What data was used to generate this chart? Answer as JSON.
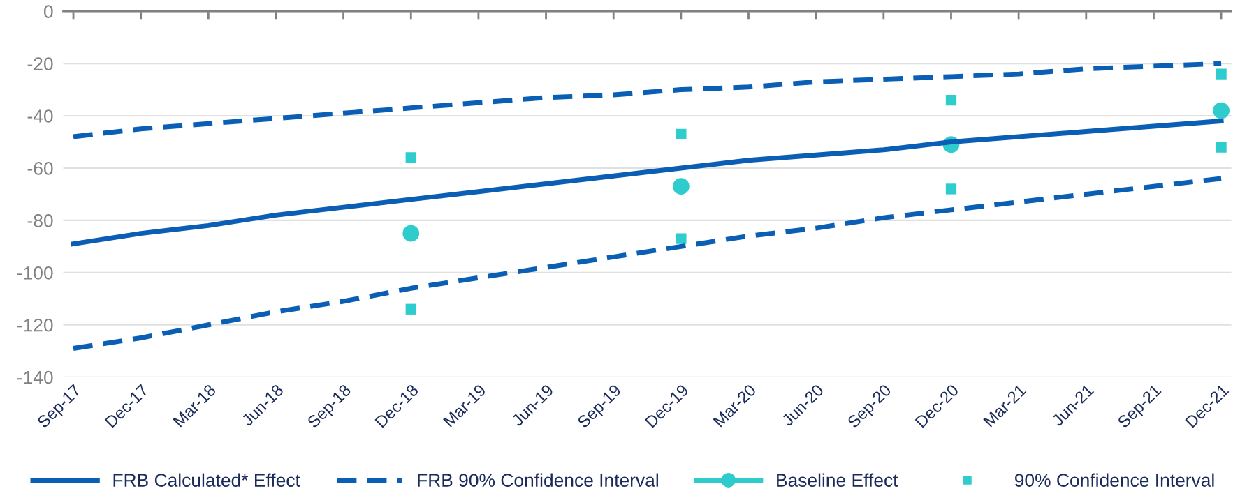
{
  "chart_data": {
    "type": "line",
    "categories": [
      "Sep-17",
      "Dec-17",
      "Mar-18",
      "Jun-18",
      "Sep-18",
      "Dec-18",
      "Mar-19",
      "Jun-19",
      "Sep-19",
      "Dec-19",
      "Mar-20",
      "Jun-20",
      "Sep-20",
      "Dec-20",
      "Mar-21",
      "Jun-21",
      "Sep-21",
      "Dec-21"
    ],
    "series": [
      {
        "name": "FRB Calculated* Effect",
        "color": "#0a5fb4",
        "line_style": "solid",
        "marker": "none",
        "values": [
          -89,
          -85,
          -82,
          -78,
          -75,
          -72,
          -69,
          -66,
          -63,
          -60,
          -57,
          -55,
          -53,
          -50,
          -48,
          -46,
          -44,
          -42
        ]
      },
      {
        "name": "FRB 90% Confidence Interval",
        "color": "#0a5fb4",
        "line_style": "dashed",
        "marker": "none",
        "values": [
          -48,
          -45,
          -43,
          -41,
          -39,
          -37,
          -35,
          -33,
          -32,
          -30,
          -29,
          -27,
          -26,
          -25,
          -24,
          -22,
          -21,
          -20
        ]
      },
      {
        "color": "#0a5fb4",
        "line_style": "dashed",
        "marker": "none",
        "values": [
          -129,
          -125,
          -120,
          -115,
          -111,
          -106,
          -102,
          -98,
          -94,
          -90,
          -86,
          -83,
          -79,
          -76,
          -73,
          -70,
          -67,
          -64
        ]
      },
      {
        "name": "Baseline Effect",
        "type": "scatter",
        "color": "#2ecccc",
        "marker": "circle",
        "values": [
          null,
          null,
          null,
          null,
          null,
          -85,
          null,
          null,
          null,
          -67,
          null,
          null,
          null,
          -51,
          null,
          null,
          null,
          -38
        ]
      },
      {
        "name": "90% Confidence Interval",
        "type": "scatter",
        "color": "#2ecccc",
        "marker": "square",
        "values": [
          null,
          null,
          null,
          null,
          null,
          -56,
          null,
          null,
          null,
          -47,
          null,
          null,
          null,
          -34,
          null,
          null,
          null,
          -24
        ]
      },
      {
        "type": "scatter",
        "color": "#2ecccc",
        "marker": "square",
        "values": [
          null,
          null,
          null,
          null,
          null,
          -114,
          null,
          null,
          null,
          -87,
          null,
          null,
          null,
          -68,
          null,
          null,
          null,
          -52
        ]
      }
    ],
    "ylim": [
      -140,
      0
    ],
    "yticks": [
      -140,
      -120,
      -100,
      -80,
      -60,
      -40,
      -20,
      0
    ],
    "grid": "y",
    "legend": "bottom"
  }
}
